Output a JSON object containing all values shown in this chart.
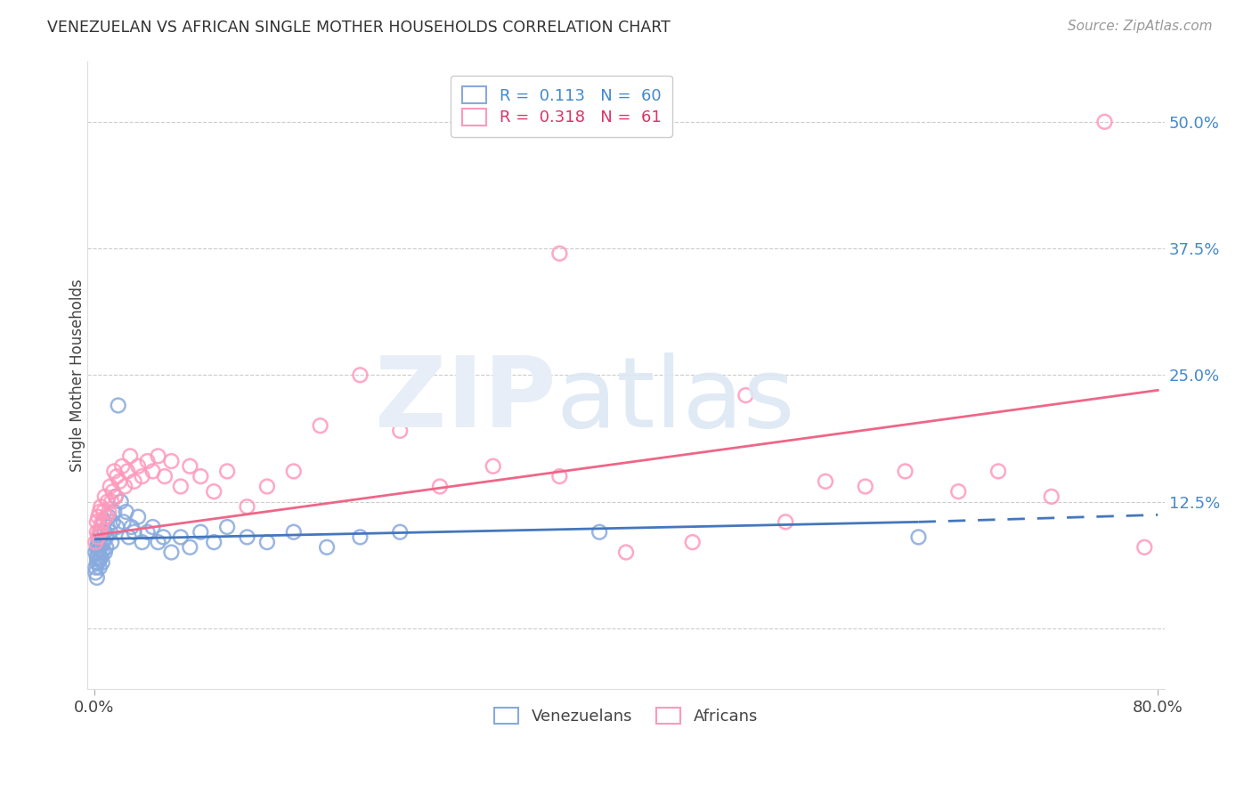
{
  "title": "VENEZUELAN VS AFRICAN SINGLE MOTHER HOUSEHOLDS CORRELATION CHART",
  "source": "Source: ZipAtlas.com",
  "ylabel": "Single Mother Households",
  "yticks": [
    0.0,
    0.125,
    0.25,
    0.375,
    0.5
  ],
  "ytick_labels": [
    "",
    "12.5%",
    "25.0%",
    "37.5%",
    "50.0%"
  ],
  "xlim": [
    -0.005,
    0.805
  ],
  "ylim": [
    -0.06,
    0.56
  ],
  "background_color": "#ffffff",
  "grid_color": "#cccccc",
  "venezuelan_color": "#88aadd",
  "african_color": "#ff99bb",
  "blue_line_color": "#4477bb",
  "pink_line_color": "#ee6688",
  "blue_R": 0.113,
  "blue_N": 60,
  "pink_R": 0.318,
  "pink_N": 61,
  "blue_line_start_x": 0.0,
  "blue_line_start_y": 0.088,
  "blue_line_solid_end_x": 0.62,
  "blue_line_solid_end_y": 0.105,
  "blue_line_dash_end_x": 0.8,
  "blue_line_dash_end_y": 0.112,
  "pink_line_start_x": 0.0,
  "pink_line_start_y": 0.092,
  "pink_line_end_x": 0.8,
  "pink_line_end_y": 0.235,
  "venezuelan_x": [
    0.001,
    0.001,
    0.001,
    0.002,
    0.002,
    0.002,
    0.002,
    0.003,
    0.003,
    0.003,
    0.003,
    0.004,
    0.004,
    0.004,
    0.005,
    0.005,
    0.005,
    0.006,
    0.006,
    0.007,
    0.007,
    0.008,
    0.008,
    0.009,
    0.009,
    0.01,
    0.011,
    0.012,
    0.013,
    0.014,
    0.015,
    0.016,
    0.017,
    0.018,
    0.02,
    0.022,
    0.024,
    0.026,
    0.028,
    0.03,
    0.033,
    0.036,
    0.04,
    0.044,
    0.048,
    0.052,
    0.058,
    0.065,
    0.072,
    0.08,
    0.09,
    0.1,
    0.115,
    0.13,
    0.15,
    0.175,
    0.2,
    0.23,
    0.38,
    0.62
  ],
  "venezuelan_y": [
    0.06,
    0.075,
    0.055,
    0.065,
    0.08,
    0.07,
    0.05,
    0.085,
    0.065,
    0.075,
    0.09,
    0.068,
    0.078,
    0.06,
    0.095,
    0.07,
    0.082,
    0.075,
    0.065,
    0.105,
    0.085,
    0.095,
    0.075,
    0.09,
    0.08,
    0.1,
    0.11,
    0.095,
    0.085,
    0.105,
    0.115,
    0.13,
    0.1,
    0.22,
    0.125,
    0.105,
    0.115,
    0.09,
    0.1,
    0.095,
    0.11,
    0.085,
    0.095,
    0.1,
    0.085,
    0.09,
    0.075,
    0.09,
    0.08,
    0.095,
    0.085,
    0.1,
    0.09,
    0.085,
    0.095,
    0.08,
    0.09,
    0.095,
    0.095,
    0.09
  ],
  "african_x": [
    0.001,
    0.002,
    0.002,
    0.003,
    0.003,
    0.004,
    0.004,
    0.005,
    0.005,
    0.006,
    0.007,
    0.008,
    0.009,
    0.01,
    0.011,
    0.012,
    0.013,
    0.014,
    0.015,
    0.016,
    0.017,
    0.019,
    0.021,
    0.023,
    0.025,
    0.027,
    0.03,
    0.033,
    0.036,
    0.04,
    0.044,
    0.048,
    0.053,
    0.058,
    0.065,
    0.072,
    0.08,
    0.09,
    0.1,
    0.115,
    0.13,
    0.15,
    0.17,
    0.2,
    0.23,
    0.26,
    0.3,
    0.35,
    0.4,
    0.45,
    0.49,
    0.52,
    0.55,
    0.58,
    0.61,
    0.65,
    0.68,
    0.72,
    0.76,
    0.79,
    0.35
  ],
  "african_y": [
    0.085,
    0.095,
    0.105,
    0.09,
    0.11,
    0.095,
    0.115,
    0.1,
    0.12,
    0.105,
    0.115,
    0.13,
    0.11,
    0.125,
    0.115,
    0.14,
    0.125,
    0.135,
    0.155,
    0.13,
    0.15,
    0.145,
    0.16,
    0.14,
    0.155,
    0.17,
    0.145,
    0.16,
    0.15,
    0.165,
    0.155,
    0.17,
    0.15,
    0.165,
    0.14,
    0.16,
    0.15,
    0.135,
    0.155,
    0.12,
    0.14,
    0.155,
    0.2,
    0.25,
    0.195,
    0.14,
    0.16,
    0.15,
    0.075,
    0.085,
    0.23,
    0.105,
    0.145,
    0.14,
    0.155,
    0.135,
    0.155,
    0.13,
    0.5,
    0.08,
    0.37
  ]
}
